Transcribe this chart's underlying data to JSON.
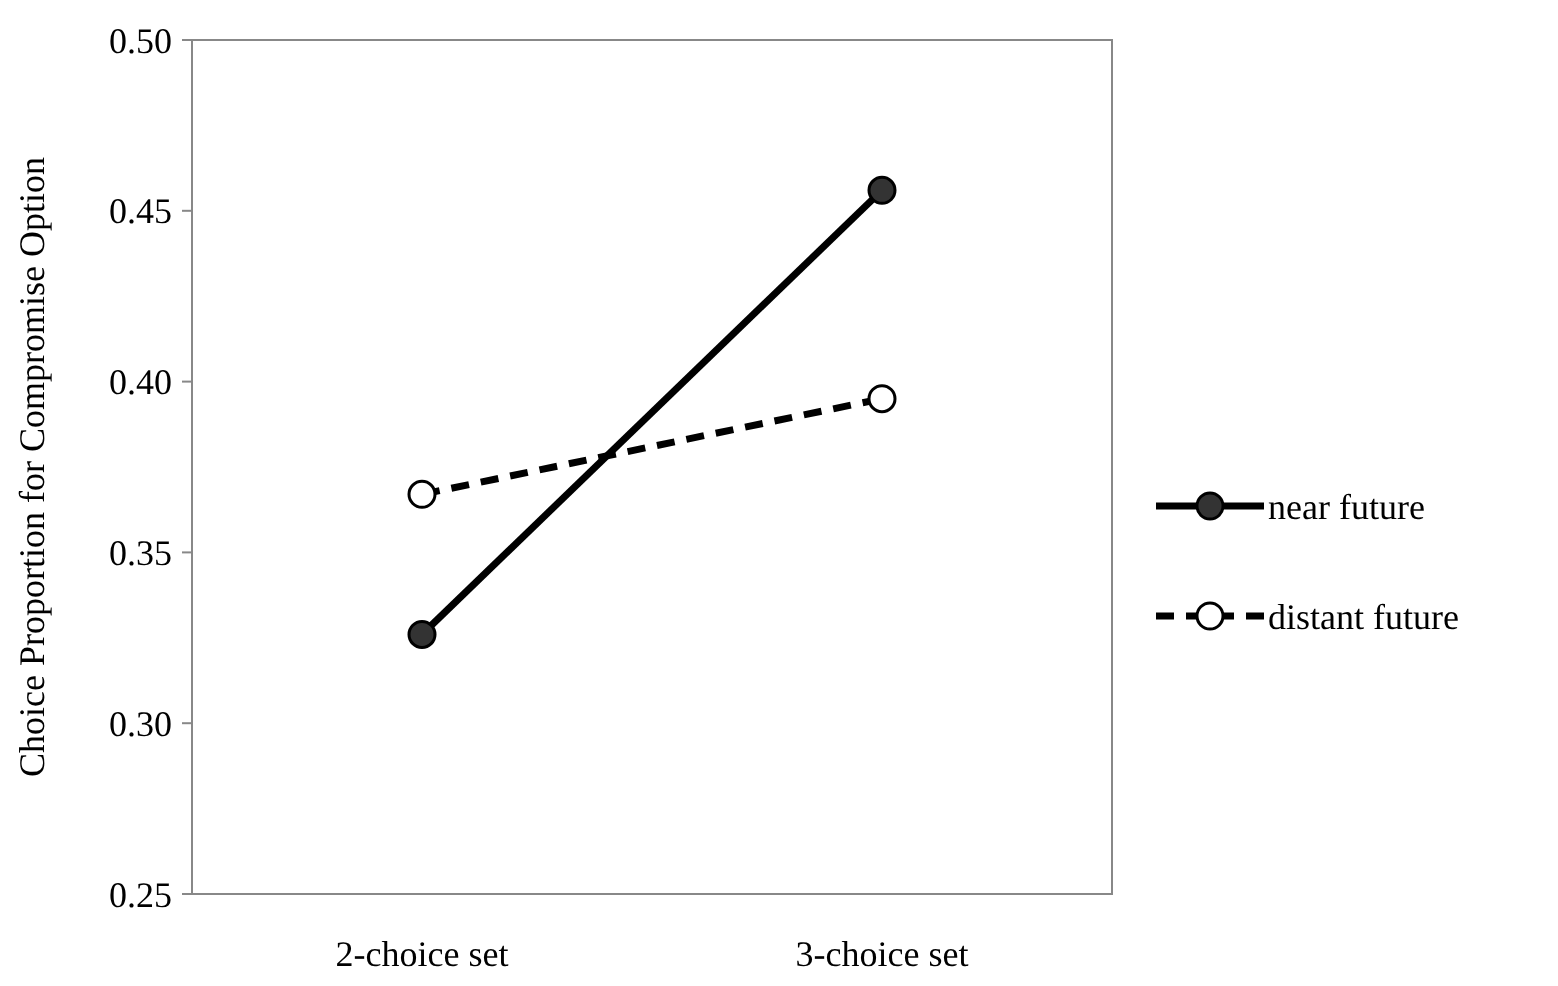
{
  "chart_data": {
    "type": "line",
    "ylabel": "Choice Proportion for Compromise Option",
    "categories": [
      "2-choice set",
      "3-choice set"
    ],
    "series": [
      {
        "name": "near future",
        "color": "#000000",
        "values": [
          0.326,
          0.456
        ],
        "marker": "circle",
        "line_style": "solid"
      },
      {
        "name": "distant future",
        "color": "#000000",
        "values": [
          0.367,
          0.395
        ],
        "marker": "circle",
        "line_style": "dashed"
      }
    ],
    "ylim": [
      0.25,
      0.5
    ],
    "yticks": [
      0.25,
      {
        "value": 0.3,
        "label": "0.30"
      },
      0.35,
      {
        "value": 0.4,
        "label": "0.40"
      },
      0.45,
      {
        "value": 0.5,
        "label": "0.50"
      }
    ],
    "grid": false,
    "legend": "right"
  }
}
